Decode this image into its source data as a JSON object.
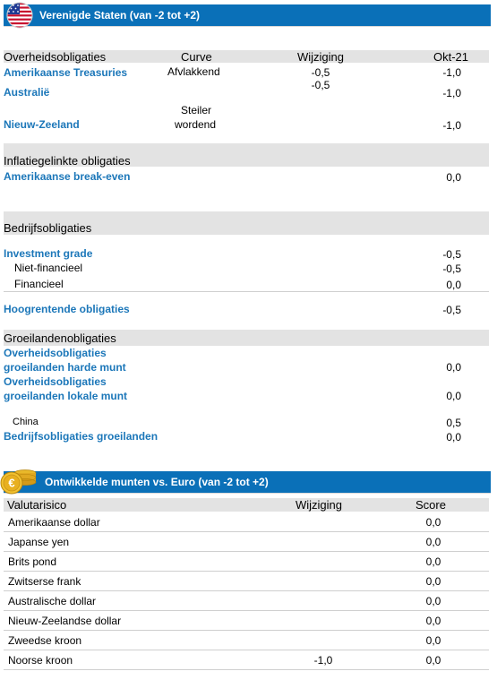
{
  "us_section": {
    "title": "Verenigde Staten (van -2 tot +2)",
    "flag_icon": "us-flag-icon",
    "govt": {
      "heading": "Overheidsobligaties",
      "col_curve": "Curve",
      "col_change": "Wijziging",
      "col_oct": "Okt-21",
      "rows": [
        {
          "label": "Amerikaanse Treasuries",
          "curve": "Afvlakkend",
          "change": "-0,5",
          "oct": "-1,0"
        },
        {
          "label": "Australië",
          "curve": "",
          "change": "-0,5",
          "oct": "-1,0"
        },
        {
          "label": "Nieuw-Zeeland",
          "curve_line1": "Steiler",
          "curve_line2": "wordend",
          "change": "",
          "oct": "-1,0"
        }
      ]
    },
    "inflation": {
      "heading": "Inflatiegelinkte obligaties",
      "rows": [
        {
          "label": "Amerikaanse break-even",
          "oct": "0,0"
        }
      ]
    },
    "corporate": {
      "heading": "Bedrijfsobligaties",
      "investment_grade": {
        "label": "Investment grade",
        "oct": "-0,5"
      },
      "non_financial": {
        "label": "Niet-financieel",
        "oct": "-0,5"
      },
      "financial": {
        "label": "Financieel",
        "oct": "0,0"
      },
      "high_yield": {
        "label": "Hoogrentende obligaties",
        "oct": "-0,5"
      }
    },
    "emerging": {
      "heading": "Groeilandenobligaties",
      "hard_line1": "Overheidsobligaties",
      "hard_line2": "groeilanden harde munt",
      "hard_oct": "0,0",
      "local_line1": "Overheidsobligaties",
      "local_line2": "groeilanden lokale munt",
      "local_oct": "0,0",
      "china_label": "China",
      "china_oct": "0,5",
      "corp_label": "Bedrijfsobligaties groeilanden",
      "corp_oct": "0,0"
    }
  },
  "fx_section": {
    "title": "Ontwikkelde munten vs. Euro (van -2 tot +2)",
    "coins_icon": "euro-coins-icon",
    "col_risk": "Valutarisico",
    "col_change": "Wijziging",
    "col_score": "Score",
    "rows": [
      {
        "label": "Amerikaanse dollar",
        "change": "",
        "score": "0,0"
      },
      {
        "label": "Japanse yen",
        "change": "",
        "score": "0,0"
      },
      {
        "label": "Brits pond",
        "change": "",
        "score": "0,0"
      },
      {
        "label": "Zwitserse frank",
        "change": "",
        "score": "0,0"
      },
      {
        "label": "Australische dollar",
        "change": "",
        "score": "0,0"
      },
      {
        "label": "Nieuw-Zeelandse dollar",
        "change": "",
        "score": "0,0"
      },
      {
        "label": "Zweedse kroon",
        "change": "",
        "score": "0,0"
      },
      {
        "label": "Noorse kroon",
        "change": "-1,0",
        "score": "0,0"
      }
    ]
  },
  "colors": {
    "bar_blue": "#0a70b8",
    "link_blue": "#1c77b9",
    "gray_band": "#e3e3e3"
  }
}
